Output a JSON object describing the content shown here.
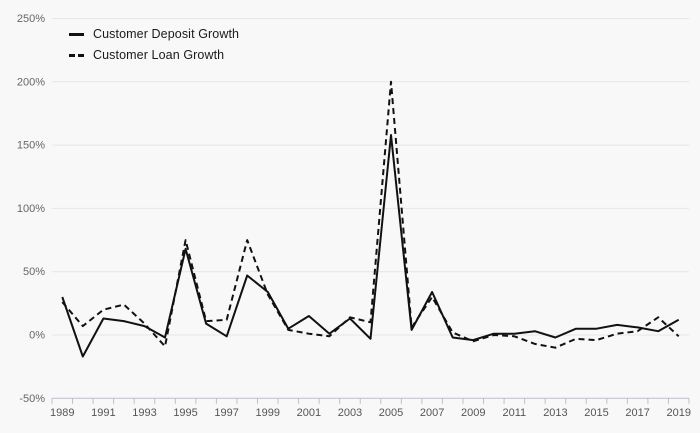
{
  "chart_data": {
    "type": "line",
    "title": "",
    "xlabel": "",
    "ylabel": "",
    "ylim": [
      -50,
      250
    ],
    "grid": "horizontal",
    "legend_position": "top-left",
    "x": [
      1989,
      1990,
      1991,
      1992,
      1993,
      1994,
      1995,
      1996,
      1997,
      1998,
      1999,
      2000,
      2001,
      2002,
      2003,
      2004,
      2005,
      2006,
      2007,
      2008,
      2009,
      2010,
      2011,
      2012,
      2013,
      2014,
      2015,
      2016,
      2017,
      2018,
      2019
    ],
    "x_tick_labels": [
      "1989",
      "1991",
      "1993",
      "1995",
      "1997",
      "1999",
      "2001",
      "2003",
      "2005",
      "2007",
      "2009",
      "2011",
      "2013",
      "2015",
      "2017",
      "2019"
    ],
    "y_ticks": [
      {
        "value": 250,
        "label": "250%"
      },
      {
        "value": 200,
        "label": "200%"
      },
      {
        "value": 150,
        "label": "150%"
      },
      {
        "value": 100,
        "label": "100%"
      },
      {
        "value": 50,
        "label": "50%"
      },
      {
        "value": 0,
        "label": "0%"
      },
      {
        "value": -50,
        "label": "-50%"
      }
    ],
    "series": [
      {
        "name": "Customer Deposit Growth",
        "style": "solid",
        "values": [
          30,
          -17,
          13,
          11,
          7,
          -2,
          68,
          9,
          -1,
          47,
          34,
          5,
          15,
          1,
          13,
          -3,
          158,
          4,
          34,
          -2,
          -4,
          1,
          1,
          3,
          -2,
          5,
          5,
          8,
          6,
          3,
          12
        ]
      },
      {
        "name": "Customer Loan Growth",
        "style": "dashed",
        "values": [
          26,
          7,
          20,
          24,
          9,
          -9,
          75,
          11,
          12,
          75,
          32,
          4,
          1,
          -1,
          14,
          10,
          200,
          6,
          30,
          2,
          -5,
          0,
          -1,
          -7,
          -10,
          -3,
          -4,
          1,
          3,
          14,
          -1
        ]
      }
    ],
    "colors": {
      "background": "#f8f8f8",
      "line": "#111111",
      "grid": "#e6e6e6",
      "axis": "#b7c0d2",
      "y_label": "#666666",
      "x_label": "#565656",
      "legend_text": "#1a1a1a"
    }
  }
}
